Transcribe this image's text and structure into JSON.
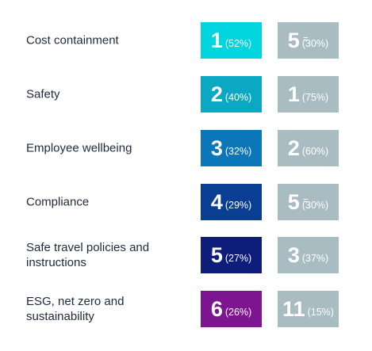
{
  "chart_data": {
    "type": "table",
    "colors": [
      "#00d4dc",
      "#0aa8c2",
      "#0b76b8",
      "#0a3e93",
      "#0f1d7a",
      "#7d1590"
    ],
    "second_color": "#a8bcc2",
    "rows": [
      {
        "label": "Cost containment",
        "rank1": "1",
        "pct1": "(52%)",
        "rank2": "5",
        "tie2": "=",
        "pct2": "30%)",
        "pct2_open": "("
      },
      {
        "label": "Safety",
        "rank1": "2",
        "pct1": "(40%)",
        "rank2": "1",
        "tie2": "",
        "pct2": "(75%)",
        "pct2_open": ""
      },
      {
        "label": "Employee wellbeing",
        "rank1": "3",
        "pct1": "(32%)",
        "rank2": "2",
        "tie2": "",
        "pct2": "(60%)",
        "pct2_open": ""
      },
      {
        "label": "Compliance",
        "rank1": "4",
        "pct1": "(29%)",
        "rank2": "5",
        "tie2": "=",
        "pct2": "30%)",
        "pct2_open": "("
      },
      {
        "label": "Safe travel policies and instructions",
        "rank1": "5",
        "pct1": "(27%)",
        "rank2": "3",
        "tie2": "",
        "pct2": "(37%)",
        "pct2_open": ""
      },
      {
        "label": "ESG, net zero and sustainability",
        "rank1": "6",
        "pct1": "(26%)",
        "rank2": "11",
        "tie2": "",
        "pct2": "(15%)",
        "pct2_open": ""
      }
    ]
  }
}
